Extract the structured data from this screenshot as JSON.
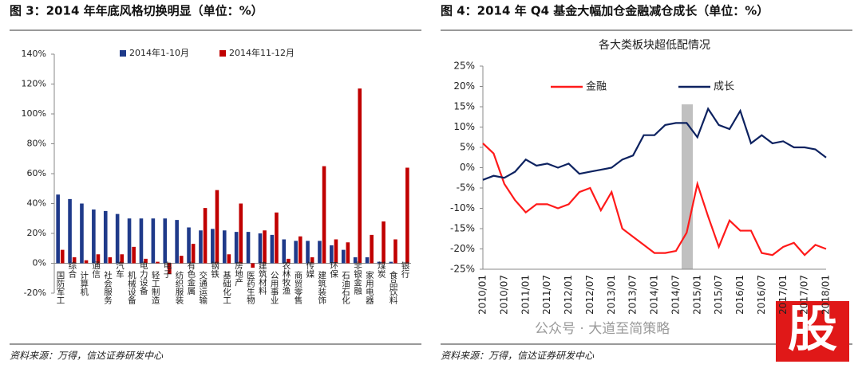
{
  "chart_data": [
    {
      "type": "bar",
      "title": "图 3：2014 年年底风格切换明显（单位：%）",
      "source": "资料来源：万得，信达证券研发中心",
      "categories": [
        "国防军工",
        "综合",
        "计算机",
        "通信",
        "社会服务",
        "汽车",
        "机械设备",
        "电力设备",
        "轻工制造",
        "电子",
        "纺织服装",
        "有色金属",
        "交通运输",
        "钢铁",
        "基础化工",
        "房地产",
        "医药生物",
        "建筑材料",
        "公用事业",
        "农林牧渔",
        "商贸零售",
        "传媒",
        "建筑装饰",
        "环保",
        "石油石化",
        "非银金融",
        "家用电器",
        "煤炭",
        "食品饮料",
        "银行"
      ],
      "series": [
        {
          "name": "2014年1-10月",
          "color": "#1f3a8a",
          "values": [
            46,
            43,
            40,
            36,
            35,
            33,
            30,
            30,
            30,
            30,
            29,
            24,
            22,
            23,
            22,
            21,
            21,
            20,
            19,
            16,
            15,
            15,
            15,
            12,
            9,
            4,
            4,
            1,
            1,
            0
          ]
        },
        {
          "name": "2014年11-12月",
          "color": "#c00000",
          "values": [
            9,
            4,
            2,
            6,
            4,
            6,
            11,
            3,
            1,
            -7,
            5,
            13,
            37,
            49,
            6,
            40,
            -3,
            22,
            34,
            3,
            18,
            4,
            65,
            16,
            14,
            117,
            19,
            28,
            16,
            64
          ]
        }
      ],
      "ylim": [
        -20,
        140
      ],
      "yticks": [
        {
          "value": -20,
          "label": "-20%"
        },
        {
          "value": 0,
          "label": "0%"
        },
        {
          "value": 20,
          "label": "20%"
        },
        {
          "value": 40,
          "label": "40%"
        },
        {
          "value": 60,
          "label": "60%"
        },
        {
          "value": 80,
          "label": "80%"
        },
        {
          "value": 100,
          "label": "100%"
        },
        {
          "value": 120,
          "label": "120%"
        },
        {
          "value": 140,
          "label": "140%"
        }
      ],
      "legend": "top"
    },
    {
      "type": "line",
      "title": "图 4：2014 年 Q4 基金大幅加仓金融减仓成长（单位：%）",
      "subtitle": "各大类板块超低配情况",
      "source": "资料来源：万得，信达证券研发中心",
      "categories": [
        "2010/01",
        null,
        "2010/07",
        null,
        "2011/01",
        null,
        "2011/07",
        null,
        "2012/01",
        null,
        "2012/07",
        null,
        "2013/01",
        null,
        "2013/07",
        null,
        "2014/01",
        null,
        "2014/07",
        null,
        "2015/01",
        null,
        "2015/07",
        null,
        "2016/01",
        null,
        "2016/07",
        null,
        "2017/01",
        null,
        "2017/07",
        null,
        "2018/01"
      ],
      "series": [
        {
          "name": "金融",
          "color": "#ff1a1a",
          "values": [
            6,
            3.5,
            -4,
            -8,
            -11,
            -9,
            -9,
            -10,
            -9,
            -6,
            -5,
            -10.5,
            -6,
            -15,
            -17,
            -19,
            -21,
            -21,
            -20.5,
            -16,
            -4,
            -12,
            -19.5,
            -13,
            -15.5,
            -15.5,
            -21,
            -21.5,
            -19.5,
            -18.5,
            -21.5,
            -19,
            -20
          ]
        },
        {
          "name": "成长",
          "color": "#0d2260",
          "values": [
            -3,
            -2,
            -2.5,
            -1,
            2,
            0.5,
            1,
            0,
            1,
            -1.5,
            -1,
            -0.5,
            0,
            2,
            3,
            8,
            8,
            10.5,
            11,
            11,
            7.5,
            14.5,
            10.5,
            9.5,
            14,
            6,
            8,
            6,
            6.5,
            5,
            5,
            4.5,
            2.5
          ]
        }
      ],
      "ylim": [
        -25,
        25
      ],
      "yticks": [
        {
          "value": -25,
          "label": "-25%"
        },
        {
          "value": -20,
          "label": "-20%"
        },
        {
          "value": -15,
          "label": "-15%"
        },
        {
          "value": -10,
          "label": "-10%"
        },
        {
          "value": -5,
          "label": "-5%"
        },
        {
          "value": 0,
          "label": "0%"
        },
        {
          "value": 5,
          "label": "5%"
        },
        {
          "value": 10,
          "label": "10%"
        },
        {
          "value": 15,
          "label": "15%"
        },
        {
          "value": 20,
          "label": "20%"
        },
        {
          "value": 25,
          "label": "25%"
        }
      ],
      "legend": "top"
    }
  ],
  "watermark": "公众号 · 大道至简策略",
  "logo": "股"
}
